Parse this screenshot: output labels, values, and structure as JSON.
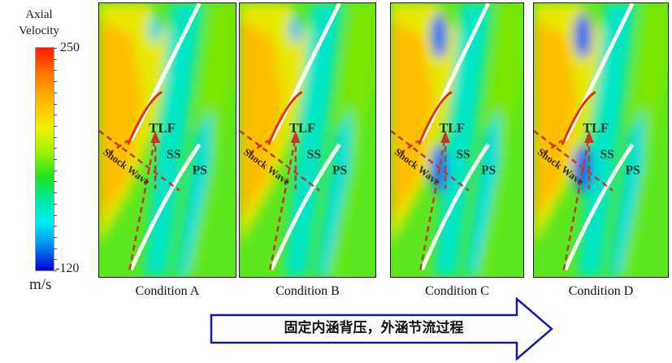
{
  "colorbar": {
    "title_line1": "Axial",
    "title_line2": "Velocity",
    "max": "250",
    "min": "-120",
    "unit": "m/s"
  },
  "panels": [
    {
      "label": "Condition A",
      "annotations": {
        "tlf": "TLF",
        "ss": "SS",
        "ps": "PS",
        "shock": "Shock Wave"
      },
      "vortex_color": "#00d8e8"
    },
    {
      "label": "Condition B",
      "annotations": {
        "tlf": "TLF",
        "ss": "SS",
        "ps": "PS",
        "shock": "Shock Wave"
      },
      "vortex_color": "#00c8f0"
    },
    {
      "label": "Condition C",
      "annotations": {
        "tlf": "TLF",
        "ss": "SS",
        "ps": "PS",
        "shock": "Shock Wave"
      },
      "vortex_color": "#1e78f0"
    },
    {
      "label": "Condition D",
      "annotations": {
        "tlf": "TLF",
        "ss": "SS",
        "ps": "PS",
        "shock": "Shock Wave"
      },
      "vortex_color": "#1464f0"
    }
  ],
  "process_arrow": {
    "text": "固定内涵背压，外涵节流过程",
    "border_color": "#1a1aa0"
  },
  "colors": {
    "dashed_line": "#c0392b",
    "annotation_text": "#0b3d1a"
  }
}
